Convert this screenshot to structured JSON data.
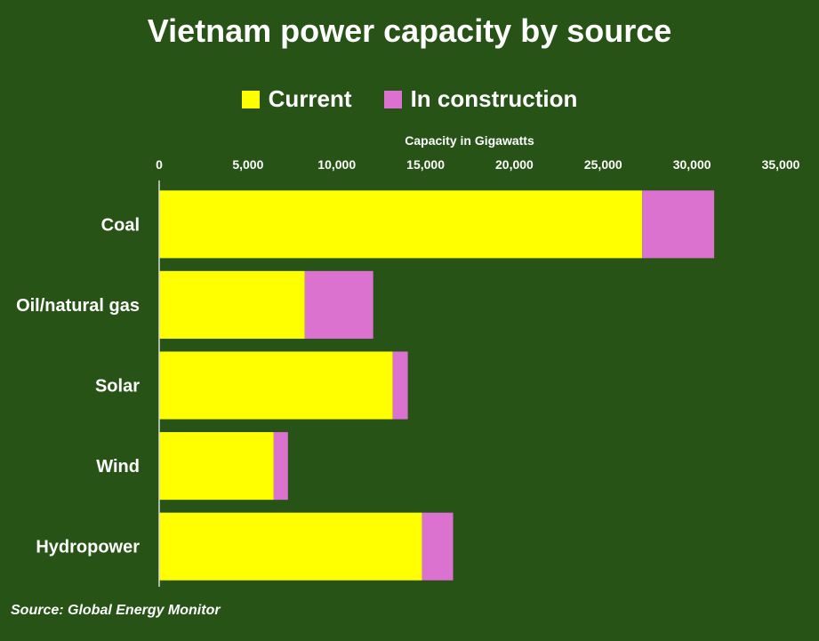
{
  "chart_data": {
    "type": "bar",
    "orientation": "horizontal",
    "stacked": true,
    "title": "Vietnam power capacity by source",
    "xlabel": "Capacity in Gigawatts",
    "ylabel": "",
    "categories": [
      "Coal",
      "Oil/natural gas",
      "Solar",
      "Wind",
      "Hydropower"
    ],
    "series": [
      {
        "name": "Current",
        "color": "#ffff00",
        "values": [
          27200,
          8200,
          13150,
          6450,
          14800
        ]
      },
      {
        "name": "In construction",
        "color": "#dc72d0",
        "values": [
          4050,
          3850,
          850,
          800,
          1750
        ]
      }
    ],
    "xlim": [
      0,
      35000
    ],
    "xticks": [
      "0",
      "5,000",
      "10,000",
      "15,000",
      "20,000",
      "25,000",
      "30,000",
      "35,000"
    ],
    "grid": false,
    "legend": "top-center"
  },
  "source": "Source: Global Energy Monitor"
}
